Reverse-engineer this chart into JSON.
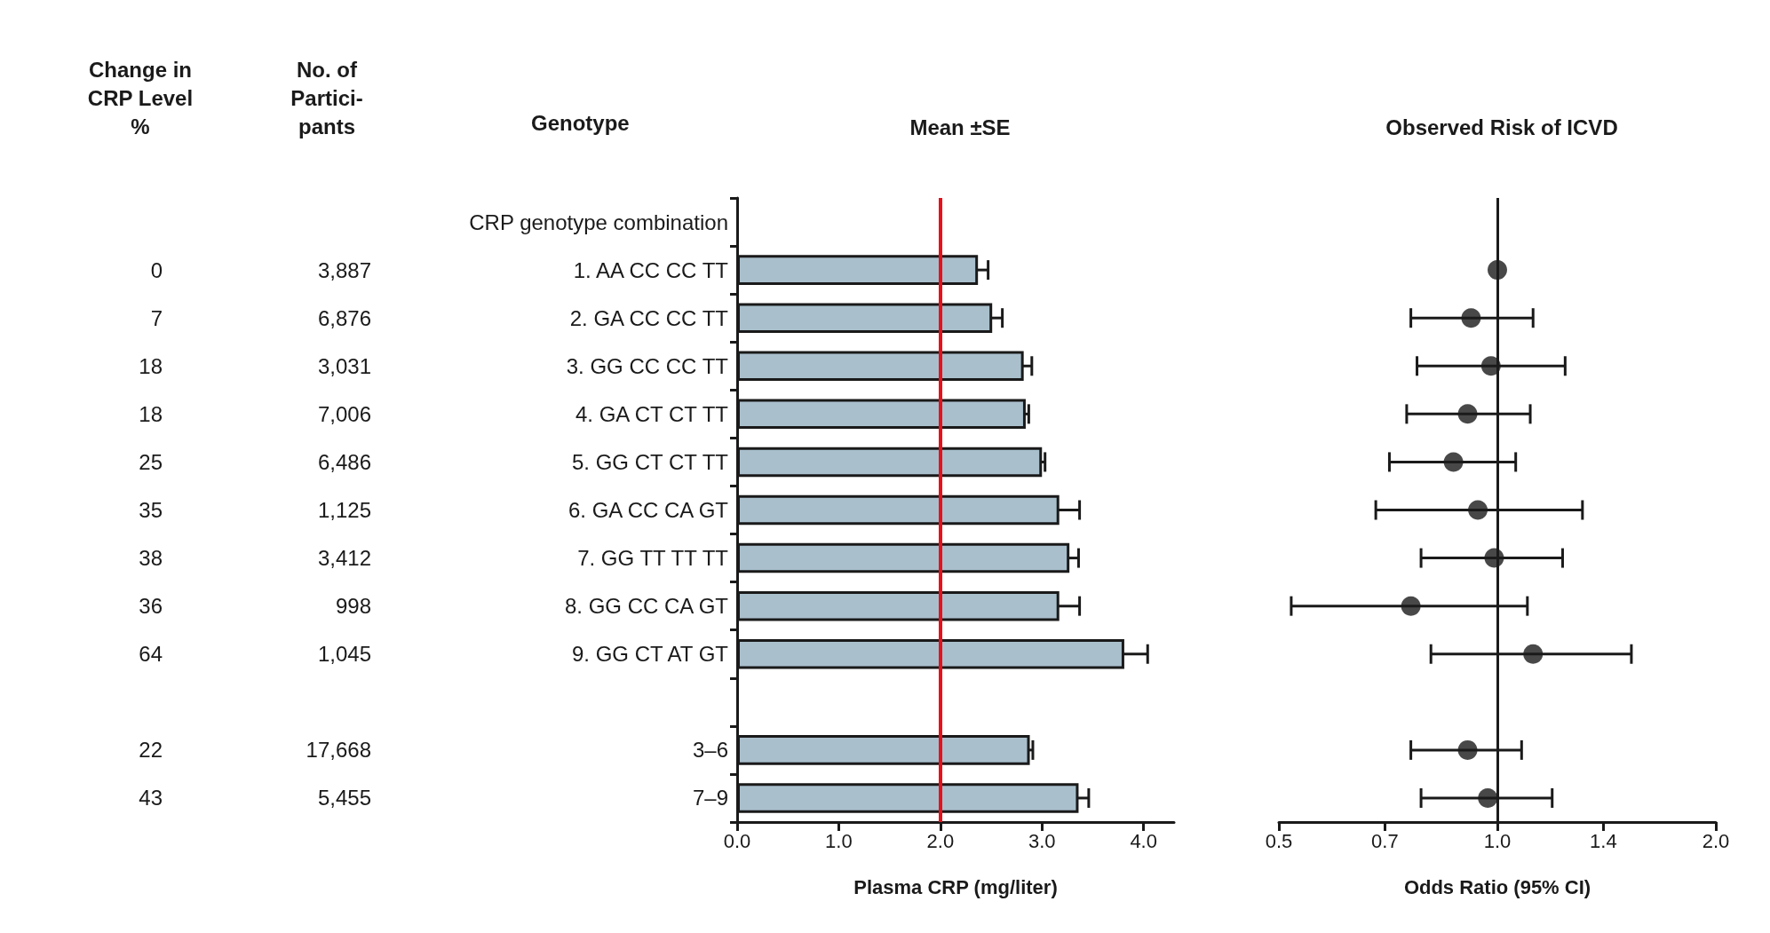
{
  "chart_data": [
    {
      "type": "bar",
      "orientation": "horizontal",
      "title": "Mean ±SE",
      "xlabel": "Plasma CRP (mg/liter)",
      "ylabel": "Genotype",
      "categories": [
        "CRP genotype combination",
        "1. AA CC CC TT",
        "2. GA CC CC TT",
        "3. GG CC CC TT",
        "4. GA CT CT TT",
        "5. GG CT CT TT",
        "6. GA CC CA GT",
        "7. GG TT TT TT",
        "8. GG CC CA GT",
        "9. GG CT AT GT",
        null,
        "3–6",
        "7–9"
      ],
      "values": [
        null,
        2.37,
        2.51,
        2.82,
        2.84,
        3.0,
        3.17,
        3.27,
        3.17,
        3.81,
        null,
        2.88,
        3.36
      ],
      "errors": [
        null,
        0.1,
        0.1,
        0.08,
        0.03,
        0.03,
        0.2,
        0.09,
        0.2,
        0.23,
        null,
        0.03,
        0.1
      ],
      "color": "#a9bfcc",
      "xlim": [
        0,
        4.3
      ],
      "xticks": [
        {
          "value": 0,
          "label": "0.0"
        },
        {
          "value": 1,
          "label": "1.0"
        },
        {
          "value": 2,
          "label": "2.0"
        },
        {
          "value": 3,
          "label": "3.0"
        },
        {
          "value": 4,
          "label": "4.0"
        }
      ],
      "ref_lines": [
        {
          "axis": "x",
          "value": 2,
          "color": "#e8101a"
        }
      ],
      "annotations": [
        "Change in\nCRP Level\n%",
        "No. of\nPartici-\npants",
        "0",
        "3,887",
        "7",
        "6,876",
        "18",
        "3,031",
        "18",
        "7,006",
        "25",
        "6,486",
        "35",
        "1,125",
        "38",
        "3,412",
        "36",
        "998",
        "64",
        "1,045",
        "22",
        "17,668",
        "43",
        "5,455"
      ]
    },
    {
      "type": "scatter",
      "orientation": "horizontal",
      "title": "Observed Risk of ICVD",
      "xlabel": "Odds Ratio (95% CI)",
      "log": "x",
      "tick_labels": "x",
      "marker": "circle",
      "categories": [
        "CRP genotype combination",
        "1. AA CC CC TT",
        "2. GA CC CC TT",
        "3. GG CC CC TT",
        "4. GA CT CT TT",
        "5. GG CT CT TT",
        "6. GA CC CA GT",
        "7. GG TT TT TT",
        "8. GG CC CA GT",
        "9. GG CT AT GT",
        null,
        "3–6",
        "7–9"
      ],
      "values": [
        null,
        1.0,
        0.92,
        0.98,
        0.91,
        0.87,
        0.94,
        0.99,
        0.76,
        1.12,
        null,
        0.91,
        0.97
      ],
      "errors": [
        null,
        null,
        [
          0.76,
          1.12
        ],
        [
          0.775,
          1.24
        ],
        [
          0.75,
          1.11
        ],
        [
          0.71,
          1.06
        ],
        [
          0.68,
          1.31
        ],
        [
          0.785,
          1.23
        ],
        [
          0.52,
          1.1
        ],
        [
          0.81,
          1.53
        ],
        null,
        [
          0.76,
          1.08
        ],
        [
          0.785,
          1.19
        ]
      ],
      "color": "#1a1a1a",
      "xlim": [
        0.5,
        2.0
      ],
      "xticks": [
        0.5,
        0.7,
        {
          "value": 1,
          "label": "1.0"
        },
        1.4,
        {
          "value": 2,
          "label": "2.0"
        }
      ],
      "ref_lines": [
        {
          "axis": "x",
          "value": 1,
          "color": "#1a1a1a"
        }
      ]
    }
  ]
}
